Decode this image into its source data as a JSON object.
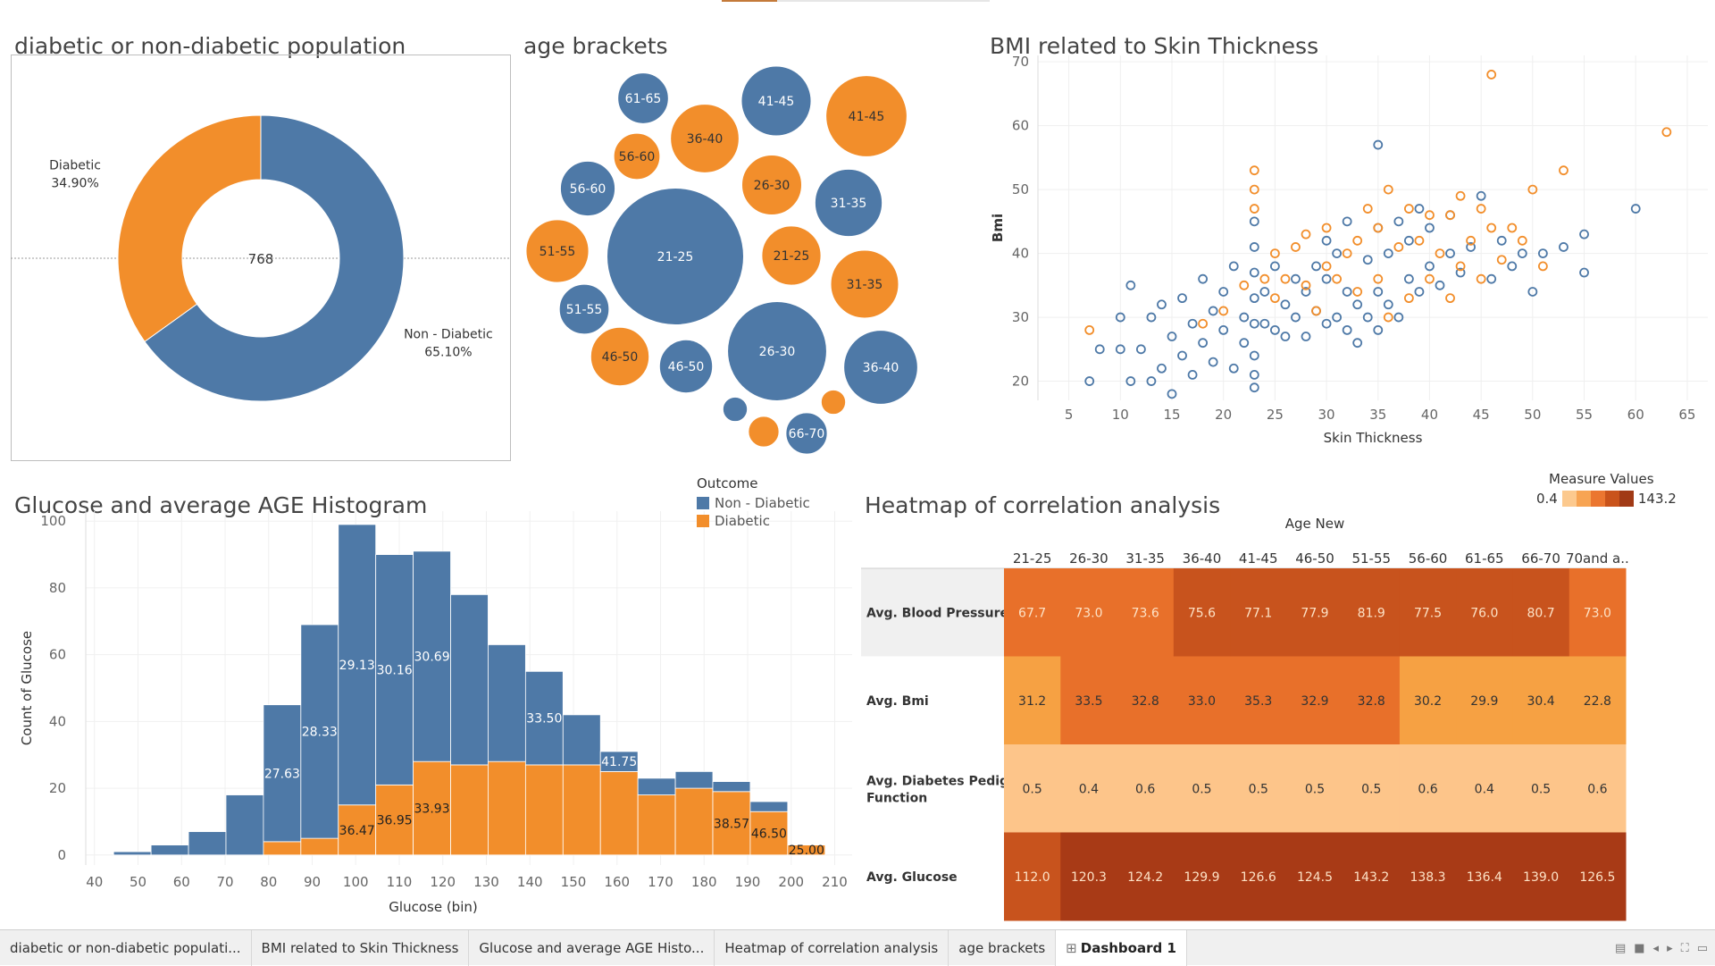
{
  "titles": {
    "donut": "diabetic or non-diabetic population",
    "bubbles": "age brackets",
    "scatter": "BMI related to Skin Thickness",
    "hist": "Glucose and average AGE Histogram",
    "heat": "Heatmap of correlation analysis"
  },
  "colors": {
    "non_diabetic": "#4e79a7",
    "diabetic": "#f28e2b"
  },
  "legend": {
    "title": "Outcome",
    "items": [
      "Non - Diabetic",
      "Diabetic"
    ]
  },
  "measure_legend": {
    "title": "Measure Values",
    "min": "0.4",
    "max": "143.2"
  },
  "tabs": [
    "diabetic or non-diabetic populati...",
    "BMI related to Skin Thickness",
    "Glucose and average AGE Histo...",
    "Heatmap of correlation analysis",
    "age brackets",
    "Dashboard 1"
  ],
  "icons": [
    "grid-icon",
    "sheet-icon",
    "present-icon",
    "prev-icon",
    "next-icon",
    "fullscreen-icon",
    "comment-icon"
  ],
  "chart_data": [
    {
      "id": "donut",
      "type": "pie",
      "title": "diabetic or non-diabetic population",
      "center_label": "768",
      "slices": [
        {
          "label": "Non - Diabetic",
          "percent_label": "65.10%",
          "value": 65.1
        },
        {
          "label": "Diabetic",
          "percent_label": "34.90%",
          "value": 34.9
        }
      ]
    },
    {
      "id": "bubbles",
      "type": "bubble",
      "title": "age brackets",
      "bubbles": [
        {
          "label": "21-25",
          "outcome": "Non - Diabetic",
          "size": 219
        },
        {
          "label": "26-30",
          "outcome": "Non - Diabetic",
          "size": 115
        },
        {
          "label": "41-45",
          "outcome": "Non - Diabetic",
          "size": 57
        },
        {
          "label": "41-45",
          "outcome": "Diabetic",
          "size": 77
        },
        {
          "label": "36-40",
          "outcome": "Diabetic",
          "size": 55
        },
        {
          "label": "61-65",
          "outcome": "Non - Diabetic",
          "size": 30
        },
        {
          "label": "56-60",
          "outcome": "Diabetic",
          "size": 25
        },
        {
          "label": "56-60",
          "outcome": "Non - Diabetic",
          "size": 35
        },
        {
          "label": "26-30",
          "outcome": "Diabetic",
          "size": 42
        },
        {
          "label": "31-35",
          "outcome": "Non - Diabetic",
          "size": 53
        },
        {
          "label": "51-55",
          "outcome": "Diabetic",
          "size": 46
        },
        {
          "label": "21-25",
          "outcome": "Diabetic",
          "size": 41
        },
        {
          "label": "31-35",
          "outcome": "Diabetic",
          "size": 54
        },
        {
          "label": "51-55",
          "outcome": "Non - Diabetic",
          "size": 29
        },
        {
          "label": "46-50",
          "outcome": "Diabetic",
          "size": 40
        },
        {
          "label": "46-50",
          "outcome": "Non - Diabetic",
          "size": 33
        },
        {
          "label": "36-40",
          "outcome": "Non - Diabetic",
          "size": 64
        },
        {
          "label": "",
          "outcome": "Non - Diabetic",
          "size": 7
        },
        {
          "label": "",
          "outcome": "Diabetic",
          "size": 11
        },
        {
          "label": "",
          "outcome": "Diabetic",
          "size": 7
        },
        {
          "label": "66-70",
          "outcome": "Non - Diabetic",
          "size": 20
        }
      ]
    },
    {
      "id": "scatter",
      "type": "scatter",
      "title": "BMI related to Skin Thickness",
      "xlabel": "Skin Thickness",
      "ylabel": "Bmi",
      "xlim": [
        2,
        67
      ],
      "ylim": [
        17,
        71
      ],
      "xticks": [
        5,
        10,
        15,
        20,
        25,
        30,
        35,
        40,
        45,
        50,
        55,
        60,
        65
      ],
      "yticks": [
        20,
        30,
        40,
        50,
        60,
        70
      ],
      "series": [
        {
          "name": "Non - Diabetic",
          "points": [
            [
              7,
              20
            ],
            [
              8,
              25
            ],
            [
              10,
              25
            ],
            [
              10,
              30
            ],
            [
              11,
              20
            ],
            [
              11,
              35
            ],
            [
              12,
              25
            ],
            [
              13,
              20
            ],
            [
              13,
              30
            ],
            [
              14,
              22
            ],
            [
              14,
              32
            ],
            [
              15,
              27
            ],
            [
              15,
              18
            ],
            [
              16,
              24
            ],
            [
              16,
              33
            ],
            [
              17,
              21
            ],
            [
              17,
              29
            ],
            [
              18,
              36
            ],
            [
              18,
              26
            ],
            [
              19,
              23
            ],
            [
              19,
              31
            ],
            [
              20,
              28
            ],
            [
              20,
              34
            ],
            [
              21,
              22
            ],
            [
              21,
              38
            ],
            [
              22,
              26
            ],
            [
              22,
              30
            ],
            [
              23,
              24
            ],
            [
              23,
              29
            ],
            [
              23,
              33
            ],
            [
              23,
              37
            ],
            [
              23,
              41
            ],
            [
              23,
              45
            ],
            [
              23,
              21
            ],
            [
              23,
              19
            ],
            [
              24,
              29
            ],
            [
              24,
              34
            ],
            [
              25,
              28
            ],
            [
              25,
              38
            ],
            [
              26,
              27
            ],
            [
              26,
              32
            ],
            [
              27,
              30
            ],
            [
              27,
              36
            ],
            [
              28,
              27
            ],
            [
              28,
              34
            ],
            [
              29,
              31
            ],
            [
              29,
              38
            ],
            [
              30,
              29
            ],
            [
              30,
              36
            ],
            [
              30,
              42
            ],
            [
              31,
              30
            ],
            [
              31,
              40
            ],
            [
              32,
              28
            ],
            [
              32,
              34
            ],
            [
              32,
              45
            ],
            [
              33,
              32
            ],
            [
              33,
              26
            ],
            [
              34,
              30
            ],
            [
              34,
              39
            ],
            [
              35,
              57
            ],
            [
              35,
              28
            ],
            [
              35,
              34
            ],
            [
              35,
              44
            ],
            [
              36,
              32
            ],
            [
              36,
              40
            ],
            [
              37,
              30
            ],
            [
              37,
              45
            ],
            [
              38,
              36
            ],
            [
              38,
              42
            ],
            [
              39,
              34
            ],
            [
              39,
              47
            ],
            [
              40,
              38
            ],
            [
              40,
              44
            ],
            [
              41,
              35
            ],
            [
              42,
              40
            ],
            [
              42,
              46
            ],
            [
              43,
              37
            ],
            [
              44,
              41
            ],
            [
              45,
              49
            ],
            [
              46,
              36
            ],
            [
              47,
              42
            ],
            [
              48,
              38
            ],
            [
              49,
              40
            ],
            [
              50,
              34
            ],
            [
              51,
              40
            ],
            [
              53,
              41
            ],
            [
              55,
              43
            ],
            [
              55,
              37
            ],
            [
              60,
              47
            ]
          ]
        },
        {
          "name": "Diabetic",
          "points": [
            [
              7,
              28
            ],
            [
              18,
              29
            ],
            [
              20,
              31
            ],
            [
              22,
              35
            ],
            [
              23,
              53
            ],
            [
              23,
              50
            ],
            [
              23,
              47
            ],
            [
              24,
              36
            ],
            [
              25,
              33
            ],
            [
              25,
              40
            ],
            [
              26,
              36
            ],
            [
              27,
              41
            ],
            [
              28,
              35
            ],
            [
              28,
              43
            ],
            [
              29,
              31
            ],
            [
              30,
              38
            ],
            [
              30,
              44
            ],
            [
              31,
              36
            ],
            [
              32,
              40
            ],
            [
              33,
              34
            ],
            [
              33,
              42
            ],
            [
              34,
              47
            ],
            [
              35,
              36
            ],
            [
              35,
              44
            ],
            [
              36,
              50
            ],
            [
              36,
              30
            ],
            [
              37,
              41
            ],
            [
              38,
              47
            ],
            [
              38,
              33
            ],
            [
              39,
              42
            ],
            [
              40,
              36
            ],
            [
              40,
              46
            ],
            [
              41,
              40
            ],
            [
              42,
              33
            ],
            [
              42,
              46
            ],
            [
              43,
              38
            ],
            [
              43,
              49
            ],
            [
              44,
              42
            ],
            [
              45,
              36
            ],
            [
              45,
              47
            ],
            [
              46,
              68
            ],
            [
              46,
              44
            ],
            [
              47,
              39
            ],
            [
              48,
              44
            ],
            [
              49,
              42
            ],
            [
              50,
              50
            ],
            [
              51,
              38
            ],
            [
              53,
              53
            ],
            [
              63,
              59
            ]
          ]
        }
      ]
    },
    {
      "id": "hist",
      "type": "bar",
      "stacked": true,
      "title": "Glucose and average AGE Histogram",
      "xlabel": "Glucose (bin)",
      "ylabel": "Count of Glucose",
      "xlim": [
        38,
        214
      ],
      "ylim": [
        -3,
        103
      ],
      "xticks": [
        40,
        50,
        60,
        70,
        80,
        90,
        100,
        110,
        120,
        130,
        140,
        150,
        160,
        170,
        180,
        190,
        200,
        210
      ],
      "yticks": [
        0,
        20,
        40,
        60,
        80,
        100
      ],
      "bin_width": 8.6,
      "bins": [
        {
          "x0": 44.4,
          "non_diabetic": 1,
          "diabetic": 0,
          "label": ""
        },
        {
          "x0": 53.0,
          "non_diabetic": 3,
          "diabetic": 0,
          "label": ""
        },
        {
          "x0": 61.6,
          "non_diabetic": 7,
          "diabetic": 0,
          "label": ""
        },
        {
          "x0": 70.2,
          "non_diabetic": 18,
          "diabetic": 0,
          "label": ""
        },
        {
          "x0": 78.8,
          "non_diabetic": 41,
          "diabetic": 4,
          "label": "27.63"
        },
        {
          "x0": 87.4,
          "non_diabetic": 64,
          "diabetic": 5,
          "label": "28.33"
        },
        {
          "x0": 96.0,
          "non_diabetic": 84,
          "diabetic": 15,
          "label": "29.13",
          "label2": "36.47"
        },
        {
          "x0": 104.6,
          "non_diabetic": 69,
          "diabetic": 21,
          "label": "30.16",
          "label2": "36.95"
        },
        {
          "x0": 113.2,
          "non_diabetic": 63,
          "diabetic": 28,
          "label": "30.69",
          "label2": "33.93"
        },
        {
          "x0": 121.8,
          "non_diabetic": 51,
          "diabetic": 27,
          "label": ""
        },
        {
          "x0": 130.4,
          "non_diabetic": 35,
          "diabetic": 28,
          "label": ""
        },
        {
          "x0": 139.0,
          "non_diabetic": 28,
          "diabetic": 27,
          "label": "33.50"
        },
        {
          "x0": 147.6,
          "non_diabetic": 15,
          "diabetic": 27,
          "label": ""
        },
        {
          "x0": 156.2,
          "non_diabetic": 6,
          "diabetic": 25,
          "label": "41.75"
        },
        {
          "x0": 164.8,
          "non_diabetic": 5,
          "diabetic": 18,
          "label": ""
        },
        {
          "x0": 173.4,
          "non_diabetic": 5,
          "diabetic": 20,
          "label": ""
        },
        {
          "x0": 182.0,
          "non_diabetic": 3,
          "diabetic": 19,
          "label": "",
          "label2": "38.57"
        },
        {
          "x0": 190.6,
          "non_diabetic": 3,
          "diabetic": 13,
          "label": "",
          "label2": "46.50"
        },
        {
          "x0": 199.2,
          "non_diabetic": 0,
          "diabetic": 3,
          "label": "",
          "label2": "25.00"
        }
      ]
    },
    {
      "id": "heat",
      "type": "heatmap",
      "title": "Heatmap of correlation analysis",
      "column_header": "Age New",
      "columns": [
        "21-25",
        "26-30",
        "31-35",
        "36-40",
        "41-45",
        "46-50",
        "51-55",
        "56-60",
        "61-65",
        "66-70",
        "70and a.."
      ],
      "rows": [
        {
          "label": "Avg. Blood Pressure",
          "values": [
            "67.7",
            "73.0",
            "73.6",
            "75.6",
            "77.1",
            "77.9",
            "81.9",
            "77.5",
            "76.0",
            "80.7",
            "73.0"
          ]
        },
        {
          "label": "Avg. Bmi",
          "values": [
            "31.2",
            "33.5",
            "32.8",
            "33.0",
            "35.3",
            "32.9",
            "32.8",
            "30.2",
            "29.9",
            "30.4",
            "22.8"
          ]
        },
        {
          "label": "Avg. Diabetes Pedigree Function",
          "values": [
            "0.5",
            "0.4",
            "0.6",
            "0.5",
            "0.5",
            "0.5",
            "0.5",
            "0.6",
            "0.4",
            "0.5",
            "0.6"
          ]
        },
        {
          "label": "Avg. Glucose",
          "values": [
            "112.0",
            "120.3",
            "124.2",
            "129.9",
            "126.6",
            "124.5",
            "143.2",
            "138.3",
            "136.4",
            "139.0",
            "126.5"
          ]
        }
      ],
      "color_range": [
        0.4,
        143.2
      ]
    }
  ]
}
